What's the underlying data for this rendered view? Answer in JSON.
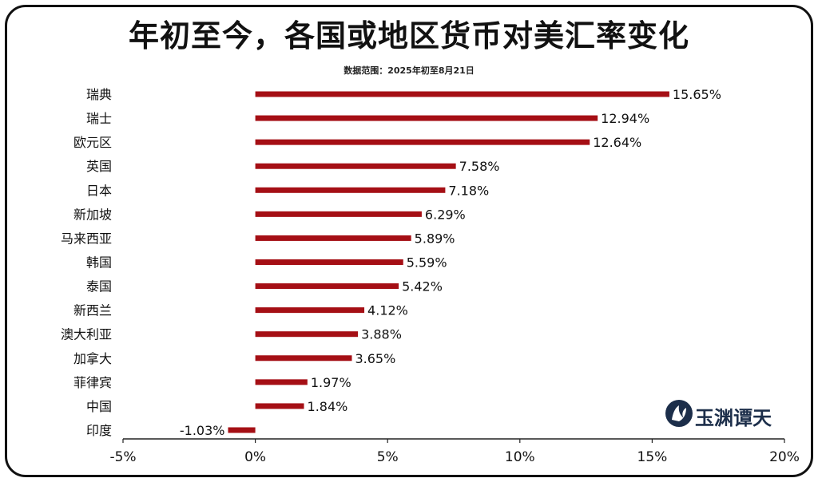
{
  "header": {
    "title": "年初至今，各国或地区货币对美汇率变化",
    "subtitle": "数据范围：2025年初至8月21日"
  },
  "watermark": {
    "text": "玉渊谭天"
  },
  "colors": {
    "bar": "#a50f15",
    "axis": "#222222",
    "text": "#111111"
  },
  "chart_data": {
    "type": "bar",
    "orientation": "horizontal",
    "categories": [
      "瑞典",
      "瑞士",
      "欧元区",
      "英国",
      "日本",
      "新加坡",
      "马来西亚",
      "韩国",
      "泰国",
      "新西兰",
      "澳大利亚",
      "加拿大",
      "菲律宾",
      "中国",
      "印度"
    ],
    "values": [
      15.65,
      12.94,
      12.64,
      7.58,
      7.18,
      6.29,
      5.89,
      5.59,
      5.42,
      4.12,
      3.88,
      3.65,
      1.97,
      1.84,
      -1.03
    ],
    "data_labels": [
      "15.65%",
      "12.94%",
      "12.64%",
      "7.58%",
      "7.18%",
      "6.29%",
      "5.89%",
      "5.59%",
      "5.42%",
      "4.12%",
      "3.88%",
      "3.65%",
      "1.97%",
      "1.84%",
      "-1.03%"
    ],
    "xlim": [
      -5,
      20
    ],
    "x_ticks": [
      -5,
      0,
      5,
      10,
      15,
      20
    ],
    "x_tick_labels": [
      "-5%",
      "0%",
      "5%",
      "10%",
      "15%",
      "20%"
    ],
    "grid": false,
    "legend": "none"
  }
}
